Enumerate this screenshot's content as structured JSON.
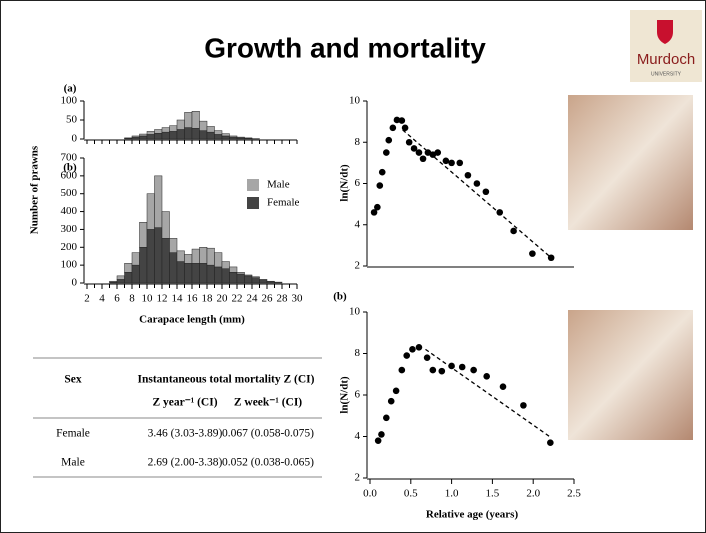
{
  "title": "Growth and mortality",
  "logo": {
    "name": "Murdoch",
    "subtitle": "UNIVERSITY"
  },
  "chart_data": [
    {
      "type": "histogram",
      "panel_label": "(a)",
      "bins": [
        2,
        3,
        4,
        5,
        6,
        7,
        8,
        9,
        10,
        11,
        12,
        13,
        14,
        15,
        16,
        17,
        18,
        19,
        20,
        21,
        22,
        23,
        24,
        25,
        26,
        27,
        28,
        29,
        30
      ],
      "xlim": [
        2,
        30
      ],
      "ylim": [
        0,
        100
      ],
      "yticks": [
        0,
        50,
        100
      ],
      "series": [
        {
          "color": "#a6a6a6",
          "values": [
            0,
            0,
            0,
            0,
            0,
            1,
            3,
            5,
            8,
            10,
            12,
            15,
            25,
            40,
            45,
            25,
            15,
            10,
            6,
            3,
            2,
            1,
            0,
            0,
            0,
            0,
            0,
            0
          ]
        },
        {
          "color": "#444444",
          "values": [
            0,
            0,
            0,
            0,
            0,
            2,
            5,
            8,
            12,
            15,
            18,
            20,
            25,
            30,
            28,
            22,
            18,
            12,
            8,
            5,
            3,
            2,
            1,
            0,
            0,
            0,
            0,
            0
          ]
        }
      ]
    },
    {
      "type": "histogram",
      "panel_label": "(b)",
      "ylabel": "Number of prawns",
      "xlabel": "Carapace length (mm)",
      "bins": [
        2,
        3,
        4,
        5,
        6,
        7,
        8,
        9,
        10,
        11,
        12,
        13,
        14,
        15,
        16,
        17,
        18,
        19,
        20,
        21,
        22,
        23,
        24,
        25,
        26,
        27,
        28,
        29,
        30
      ],
      "xlim": [
        2,
        30
      ],
      "xticks": [
        2,
        4,
        6,
        8,
        10,
        12,
        14,
        16,
        18,
        20,
        22,
        24,
        26,
        28,
        30
      ],
      "ylim": [
        0,
        700
      ],
      "yticks": [
        0,
        100,
        200,
        300,
        400,
        500,
        600,
        700
      ],
      "series": [
        {
          "name": "Male",
          "color": "#a6a6a6",
          "values": [
            0,
            0,
            0,
            5,
            20,
            50,
            70,
            140,
            200,
            290,
            150,
            80,
            60,
            50,
            80,
            90,
            95,
            80,
            40,
            30,
            10,
            5,
            5,
            0,
            0,
            0,
            0,
            0
          ]
        },
        {
          "name": "Female",
          "color": "#444444",
          "values": [
            0,
            0,
            0,
            5,
            20,
            60,
            100,
            200,
            300,
            310,
            250,
            170,
            120,
            110,
            110,
            110,
            100,
            90,
            80,
            60,
            50,
            40,
            30,
            20,
            10,
            5,
            0,
            0
          ]
        }
      ]
    },
    {
      "type": "scatter",
      "ylabel": "ln(N/dt)",
      "xlim": [
        0,
        2.5
      ],
      "ylim": [
        2,
        10
      ],
      "yticks": [
        2,
        4,
        6,
        8,
        10
      ],
      "series": [
        {
          "color": "#000000",
          "x": [
            0.05,
            0.09,
            0.12,
            0.15,
            0.2,
            0.23,
            0.28,
            0.33,
            0.39,
            0.43,
            0.48,
            0.54,
            0.6,
            0.65,
            0.71,
            0.77,
            0.83,
            0.93,
            1.0,
            1.1,
            1.2,
            1.31,
            1.42,
            1.59,
            1.76,
            1.99,
            2.22
          ],
          "values": [
            4.6,
            4.85,
            5.9,
            6.55,
            7.5,
            8.1,
            8.7,
            9.08,
            9.05,
            8.7,
            8.0,
            7.7,
            7.5,
            7.2,
            7.5,
            7.4,
            7.5,
            7.1,
            7.0,
            7.0,
            6.4,
            6.0,
            5.6,
            4.6,
            3.7,
            2.6,
            2.4
          ]
        },
        {
          "color": "#000000",
          "style": "dashed",
          "x": [
            0.4,
            2.25
          ],
          "values": [
            8.6,
            2.3
          ]
        }
      ]
    },
    {
      "type": "scatter",
      "panel_label": "(b)",
      "ylabel": "ln(N/dt)",
      "xlabel": "Relative age (years)",
      "xlim": [
        0,
        2.5
      ],
      "xticks": [
        {
          "value": 0,
          "label": "0.0"
        },
        0.5,
        {
          "value": 1,
          "label": "1.0"
        },
        1.5,
        {
          "value": 2,
          "label": "2.0"
        },
        2.5
      ],
      "ylim": [
        2,
        10
      ],
      "yticks": [
        2,
        4,
        6,
        8,
        10
      ],
      "series": [
        {
          "color": "#000000",
          "x": [
            0.1,
            0.14,
            0.2,
            0.26,
            0.32,
            0.39,
            0.45,
            0.52,
            0.6,
            0.7,
            0.77,
            0.88,
            1.0,
            1.13,
            1.27,
            1.43,
            1.63,
            1.88,
            2.21
          ],
          "values": [
            3.8,
            4.1,
            4.9,
            5.7,
            6.2,
            7.2,
            7.9,
            8.2,
            8.3,
            7.8,
            7.2,
            7.15,
            7.4,
            7.35,
            7.2,
            6.9,
            6.4,
            5.5,
            3.7
          ]
        },
        {
          "color": "#000000",
          "style": "dashed",
          "x": [
            0.68,
            2.2
          ],
          "values": [
            8.2,
            4.0
          ]
        }
      ]
    }
  ],
  "table": {
    "header": [
      "Sex",
      "Instantaneous total mortality Z (CI)"
    ],
    "subheader": [
      "Z year⁻¹ (CI)",
      "Z week⁻¹ (CI)"
    ],
    "rows": [
      [
        "Female",
        "3.46 (3.03-3.89)",
        "0.067 (0.058-0.075)"
      ],
      [
        "Male",
        "2.69 (2.00-3.38)",
        "0.052 (0.038-0.065)"
      ]
    ]
  }
}
